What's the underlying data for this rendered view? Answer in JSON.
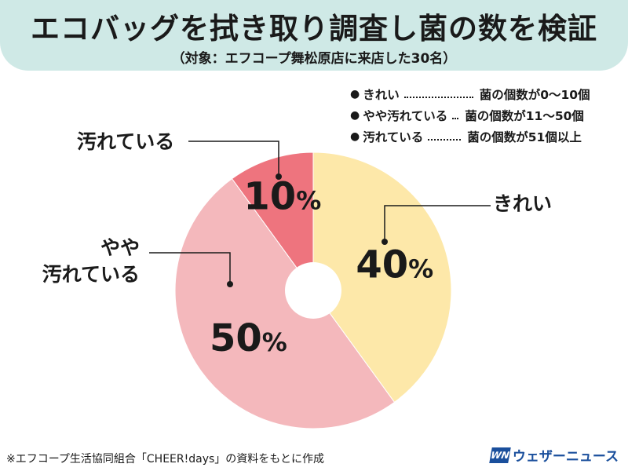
{
  "header": {
    "title": "エコバッグを拭き取り調査し菌の数を検証",
    "subtitle": "（対象：エフコープ舞松原店に来店した30名）"
  },
  "legend": [
    {
      "label": "きれい",
      "desc": "菌の個数が0〜10個"
    },
    {
      "label": "やや汚れている",
      "desc": "菌の個数が11〜50個"
    },
    {
      "label": "汚れている",
      "desc": "菌の個数が51個以上"
    }
  ],
  "chart_data": {
    "type": "pie",
    "donut_hole": true,
    "categories": [
      "きれい",
      "やや汚れている",
      "汚れている"
    ],
    "values": [
      40,
      50,
      10
    ],
    "value_labels": [
      "40%",
      "50%",
      "10%"
    ],
    "callout_labels": [
      "きれい",
      "やや\n汚れている",
      "汚れている"
    ],
    "colors": [
      "#fde8a9",
      "#f4b8bc",
      "#ee747e"
    ],
    "legend_position": "top-right"
  },
  "footnote": "※エフコープ生活協同組合「CHEER!days」の資料をもとに作成",
  "logo": {
    "mark": "WN",
    "text": "ウェザーニュース"
  }
}
